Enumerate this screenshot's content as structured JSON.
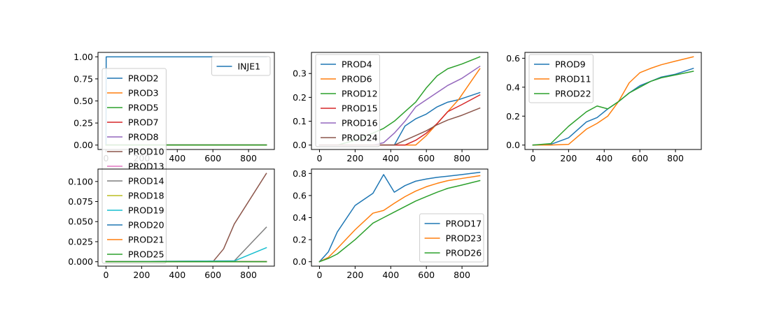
{
  "chart_data": [
    {
      "type": "line",
      "xlim": [
        -45,
        945
      ],
      "ylim": [
        -0.05,
        1.05
      ],
      "xticks": [
        0,
        200,
        400,
        600,
        800
      ],
      "yticks": [
        0.0,
        0.25,
        0.5,
        0.75,
        1.0
      ],
      "ytick_labels": [
        "0.00",
        "0.25",
        "0.50",
        "0.75",
        "1.00"
      ],
      "legends": [
        {
          "placement": "upper-right",
          "entries": [
            0
          ]
        },
        {
          "placement": "upper-left",
          "entries": [
            1,
            2,
            3,
            4,
            5,
            6,
            7,
            8,
            9,
            10,
            11,
            12,
            13
          ]
        }
      ],
      "series": [
        {
          "name": "INJE1",
          "color": "#1f77b4",
          "x": [
            0,
            1,
            900
          ],
          "y": [
            0,
            1,
            1
          ]
        },
        {
          "name": "PROD2",
          "color": "#1f77b4",
          "x": [
            0,
            900
          ],
          "y": [
            0,
            0
          ]
        },
        {
          "name": "PROD3",
          "color": "#ff7f0e",
          "x": [
            0,
            900
          ],
          "y": [
            0,
            0
          ]
        },
        {
          "name": "PROD5",
          "color": "#2ca02c",
          "x": [
            0,
            900
          ],
          "y": [
            0,
            0
          ]
        },
        {
          "name": "PROD7",
          "color": "#d62728",
          "x": [
            0,
            900
          ],
          "y": [
            0,
            0
          ]
        },
        {
          "name": "PROD8",
          "color": "#9467bd",
          "x": [
            0,
            900
          ],
          "y": [
            0,
            0
          ]
        },
        {
          "name": "PROD10",
          "color": "#8c564b",
          "x": [
            0,
            900
          ],
          "y": [
            0,
            0
          ]
        },
        {
          "name": "PROD13",
          "color": "#e377c2",
          "x": [
            0,
            900
          ],
          "y": [
            0,
            0
          ]
        },
        {
          "name": "PROD14",
          "color": "#7f7f7f",
          "x": [
            0,
            900
          ],
          "y": [
            0,
            0
          ]
        },
        {
          "name": "PROD18",
          "color": "#bcbd22",
          "x": [
            0,
            900
          ],
          "y": [
            0,
            0
          ]
        },
        {
          "name": "PROD19",
          "color": "#17becf",
          "x": [
            0,
            900
          ],
          "y": [
            0,
            0
          ]
        },
        {
          "name": "PROD20",
          "color": "#1f77b4",
          "x": [
            0,
            900
          ],
          "y": [
            0,
            0
          ]
        },
        {
          "name": "PROD21",
          "color": "#ff7f0e",
          "x": [
            0,
            900
          ],
          "y": [
            0,
            0
          ]
        },
        {
          "name": "PROD25",
          "color": "#2ca02c",
          "x": [
            0,
            900
          ],
          "y": [
            0,
            0
          ]
        }
      ]
    },
    {
      "type": "line",
      "xlim": [
        -45,
        945
      ],
      "ylim": [
        -0.0185,
        0.3885
      ],
      "xticks": [
        0,
        200,
        400,
        600,
        800
      ],
      "yticks": [
        0.0,
        0.1,
        0.2,
        0.3
      ],
      "ytick_labels": [
        "0.0",
        "0.1",
        "0.2",
        "0.3"
      ],
      "legends": [
        {
          "placement": "upper-left",
          "entries": [
            0,
            1,
            2,
            3,
            4,
            5
          ]
        }
      ],
      "series": [
        {
          "name": "PROD4",
          "color": "#1f77b4",
          "x": [
            0,
            420,
            480,
            540,
            600,
            660,
            720,
            780,
            900
          ],
          "y": [
            0,
            0,
            0.08,
            0.11,
            0.13,
            0.16,
            0.18,
            0.19,
            0.22
          ]
        },
        {
          "name": "PROD6",
          "color": "#ff7f0e",
          "x": [
            0,
            540,
            600,
            660,
            720,
            780,
            900
          ],
          "y": [
            0,
            0,
            0.04,
            0.09,
            0.14,
            0.19,
            0.32
          ]
        },
        {
          "name": "PROD12",
          "color": "#2ca02c",
          "x": [
            0,
            100,
            200,
            300,
            360,
            420,
            480,
            540,
            600,
            660,
            720,
            800,
            900
          ],
          "y": [
            0,
            0,
            0.02,
            0.05,
            0.07,
            0.1,
            0.14,
            0.18,
            0.24,
            0.29,
            0.32,
            0.34,
            0.37
          ]
        },
        {
          "name": "PROD15",
          "color": "#d62728",
          "x": [
            0,
            480,
            540,
            600,
            660,
            720,
            800,
            900
          ],
          "y": [
            0,
            0,
            0.02,
            0.05,
            0.09,
            0.14,
            0.17,
            0.21
          ]
        },
        {
          "name": "PROD16",
          "color": "#9467bd",
          "x": [
            0,
            300,
            360,
            420,
            480,
            540,
            600,
            660,
            720,
            800,
            900
          ],
          "y": [
            0,
            0,
            0.01,
            0.05,
            0.1,
            0.16,
            0.19,
            0.22,
            0.25,
            0.28,
            0.33
          ]
        },
        {
          "name": "PROD24",
          "color": "#8c564b",
          "x": [
            0,
            420,
            480,
            540,
            600,
            660,
            720,
            800,
            900
          ],
          "y": [
            0,
            0,
            0.02,
            0.04,
            0.06,
            0.085,
            0.105,
            0.125,
            0.155
          ]
        }
      ]
    },
    {
      "type": "line",
      "xlim": [
        -45,
        945
      ],
      "ylim": [
        -0.0305,
        0.6405
      ],
      "xticks": [
        0,
        200,
        400,
        600,
        800
      ],
      "yticks": [
        0.0,
        0.2,
        0.4,
        0.6
      ],
      "ytick_labels": [
        "0.0",
        "0.2",
        "0.4",
        "0.6"
      ],
      "legends": [
        {
          "placement": "upper-left",
          "entries": [
            0,
            1,
            2
          ]
        }
      ],
      "series": [
        {
          "name": "PROD9",
          "color": "#1f77b4",
          "x": [
            0,
            100,
            200,
            300,
            360,
            420,
            480,
            540,
            600,
            660,
            720,
            800,
            900
          ],
          "y": [
            0,
            0.005,
            0.05,
            0.16,
            0.19,
            0.25,
            0.3,
            0.36,
            0.41,
            0.44,
            0.47,
            0.49,
            0.53
          ]
        },
        {
          "name": "PROD11",
          "color": "#ff7f0e",
          "x": [
            0,
            100,
            200,
            300,
            360,
            420,
            480,
            540,
            600,
            660,
            720,
            800,
            900
          ],
          "y": [
            0,
            0,
            0.005,
            0.11,
            0.15,
            0.2,
            0.3,
            0.43,
            0.5,
            0.53,
            0.555,
            0.58,
            0.61
          ]
        },
        {
          "name": "PROD22",
          "color": "#2ca02c",
          "x": [
            0,
            100,
            200,
            300,
            360,
            420,
            480,
            540,
            600,
            660,
            720,
            800,
            900
          ],
          "y": [
            0,
            0.01,
            0.13,
            0.23,
            0.27,
            0.25,
            0.3,
            0.36,
            0.4,
            0.44,
            0.465,
            0.485,
            0.51
          ]
        }
      ]
    },
    {
      "type": "line",
      "xlim": [
        -45,
        945
      ],
      "ylim": [
        -0.0055,
        0.1155
      ],
      "xticks": [
        0,
        200,
        400,
        600,
        800
      ],
      "yticks": [
        0.0,
        0.025,
        0.05,
        0.075,
        0.1
      ],
      "ytick_labels": [
        "0.000",
        "0.025",
        "0.050",
        "0.075",
        "0.100"
      ],
      "legends": [],
      "series": [
        {
          "name": "PROD2",
          "color": "#1f77b4",
          "x": [
            0,
            900
          ],
          "y": [
            0,
            0
          ]
        },
        {
          "name": "PROD3",
          "color": "#ff7f0e",
          "x": [
            0,
            900
          ],
          "y": [
            0,
            0
          ]
        },
        {
          "name": "PROD5",
          "color": "#2ca02c",
          "x": [
            0,
            900
          ],
          "y": [
            0,
            0
          ]
        },
        {
          "name": "PROD7",
          "color": "#d62728",
          "x": [
            0,
            900
          ],
          "y": [
            0,
            0
          ]
        },
        {
          "name": "PROD8",
          "color": "#9467bd",
          "x": [
            0,
            900
          ],
          "y": [
            0,
            0
          ]
        },
        {
          "name": "PROD10",
          "color": "#8c564b",
          "x": [
            0,
            600,
            660,
            720,
            900
          ],
          "y": [
            0,
            0,
            0.016,
            0.047,
            0.11
          ]
        },
        {
          "name": "PROD13",
          "color": "#e377c2",
          "x": [
            0,
            900
          ],
          "y": [
            0,
            0
          ]
        },
        {
          "name": "PROD14",
          "color": "#7f7f7f",
          "x": [
            0,
            720,
            900
          ],
          "y": [
            0,
            0.001,
            0.043
          ]
        },
        {
          "name": "PROD18",
          "color": "#bcbd22",
          "x": [
            0,
            900
          ],
          "y": [
            0,
            0
          ]
        },
        {
          "name": "PROD19",
          "color": "#17becf",
          "x": [
            0,
            720,
            900
          ],
          "y": [
            0,
            0.001,
            0.0175
          ]
        },
        {
          "name": "PROD20",
          "color": "#1f77b4",
          "x": [
            0,
            900
          ],
          "y": [
            0,
            0
          ]
        },
        {
          "name": "PROD21",
          "color": "#ff7f0e",
          "x": [
            0,
            900
          ],
          "y": [
            0,
            0
          ]
        },
        {
          "name": "PROD25",
          "color": "#2ca02c",
          "x": [
            0,
            900
          ],
          "y": [
            0,
            0
          ]
        }
      ]
    },
    {
      "type": "line",
      "xlim": [
        -45,
        945
      ],
      "ylim": [
        -0.04,
        0.84
      ],
      "xticks": [
        0,
        200,
        400,
        600,
        800
      ],
      "yticks": [
        0.0,
        0.2,
        0.4,
        0.6,
        0.8
      ],
      "ytick_labels": [
        "0.0",
        "0.2",
        "0.4",
        "0.6",
        "0.8"
      ],
      "legends": [
        {
          "placement": "lower-right",
          "entries": [
            0,
            1,
            2
          ]
        }
      ],
      "series": [
        {
          "name": "PROD17",
          "color": "#1f77b4",
          "x": [
            0,
            50,
            100,
            200,
            300,
            360,
            420,
            480,
            540,
            600,
            660,
            720,
            800,
            900
          ],
          "y": [
            0,
            0.09,
            0.27,
            0.51,
            0.62,
            0.79,
            0.63,
            0.69,
            0.73,
            0.75,
            0.765,
            0.775,
            0.79,
            0.81
          ]
        },
        {
          "name": "PROD23",
          "color": "#ff7f0e",
          "x": [
            0,
            50,
            100,
            200,
            300,
            360,
            420,
            480,
            540,
            600,
            660,
            720,
            800,
            900
          ],
          "y": [
            0,
            0.04,
            0.12,
            0.29,
            0.44,
            0.465,
            0.53,
            0.59,
            0.64,
            0.68,
            0.71,
            0.735,
            0.755,
            0.78
          ]
        },
        {
          "name": "PROD26",
          "color": "#2ca02c",
          "x": [
            0,
            50,
            100,
            200,
            300,
            360,
            420,
            480,
            540,
            600,
            660,
            720,
            800,
            900
          ],
          "y": [
            0,
            0.03,
            0.07,
            0.2,
            0.35,
            0.4,
            0.45,
            0.5,
            0.55,
            0.59,
            0.63,
            0.665,
            0.695,
            0.735
          ]
        }
      ]
    }
  ]
}
